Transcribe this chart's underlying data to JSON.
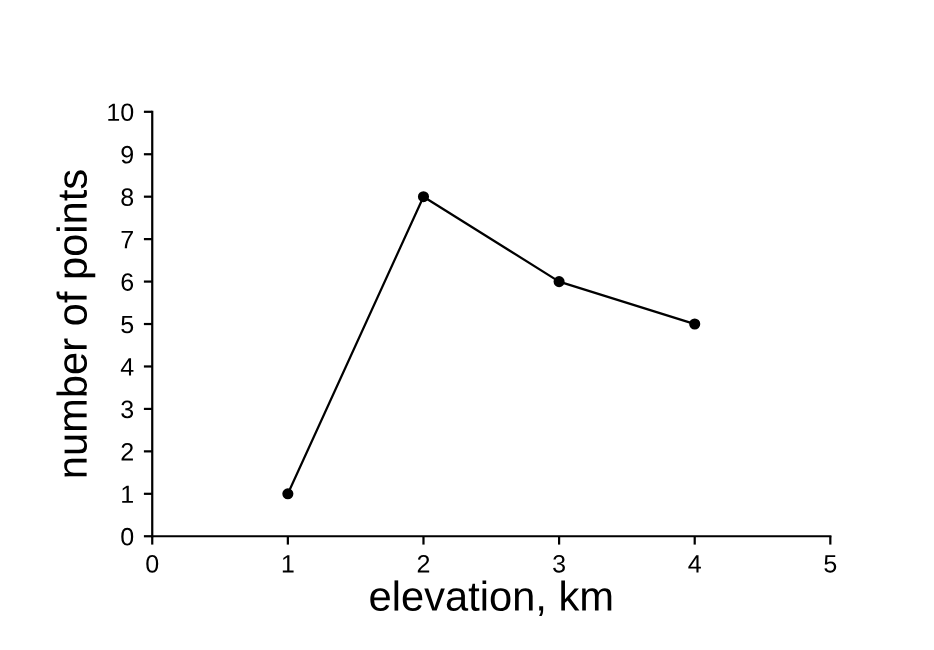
{
  "chart_data": {
    "type": "line",
    "xlabel": "elevation, km",
    "ylabel": "number of points",
    "x": [
      1,
      2,
      3,
      4
    ],
    "series": [
      {
        "color": "#000000",
        "values": [
          1,
          8,
          6,
          5
        ]
      }
    ],
    "xlim": [
      0,
      5
    ],
    "xticks": [
      0,
      1,
      2,
      3,
      4,
      5
    ],
    "ylim": [
      0,
      10
    ],
    "yticks": [
      0,
      1,
      2,
      3,
      4,
      5,
      6,
      7,
      8,
      9,
      10
    ],
    "grid": false,
    "marker": "circle",
    "line_style": "solid"
  }
}
